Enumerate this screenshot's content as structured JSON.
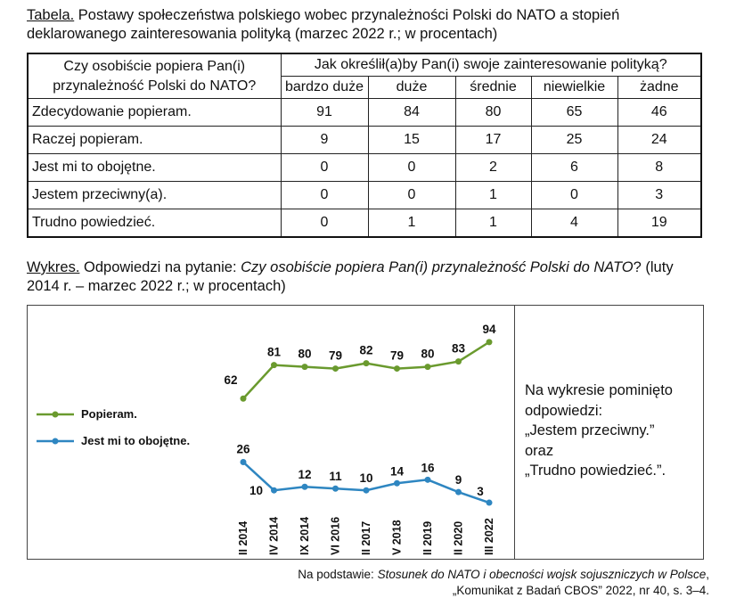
{
  "table_caption": {
    "label": "Tabela.",
    "text": " Postawy społeczeństwa polskiego wobec przynależności Polski do NATO a stopień deklarowanego zainteresowania polityką (marzec 2022 r.; w procentach)"
  },
  "table": {
    "corner": "Czy osobiście popiera Pan(i) przynależność Polski do NATO?",
    "group_header": "Jak określił(a)by Pan(i) swoje zainteresowanie polityką?",
    "columns": [
      "bardzo duże",
      "duże",
      "średnie",
      "niewielkie",
      "żadne"
    ],
    "rows": [
      {
        "label": "Zdecydowanie popieram.",
        "values": [
          "91",
          "84",
          "80",
          "65",
          "46"
        ]
      },
      {
        "label": "Raczej popieram.",
        "values": [
          "9",
          "15",
          "17",
          "25",
          "24"
        ]
      },
      {
        "label": "Jest mi to obojętne.",
        "values": [
          "0",
          "0",
          "2",
          "6",
          "8"
        ]
      },
      {
        "label": "Jestem przeciwny(a).",
        "values": [
          "0",
          "0",
          "1",
          "0",
          "3"
        ]
      },
      {
        "label": "Trudno powiedzieć.",
        "values": [
          "0",
          "1",
          "1",
          "4",
          "19"
        ]
      }
    ]
  },
  "chart_caption": {
    "label": "Wykres.",
    "text_before": " Odpowiedzi na pytanie: ",
    "question": "Czy osobiście popiera Pan(i) przynależność Polski do NATO",
    "text_after": "? (luty 2014 r. – marzec 2022 r.; w procentach)"
  },
  "chart_data": {
    "type": "line",
    "categories": [
      "II 2014",
      "IV 2014",
      "IX 2014",
      "VI 2016",
      "II 2017",
      "V 2018",
      "II 2019",
      "II 2020",
      "III 2022"
    ],
    "series": [
      {
        "name": "Popieram.",
        "color": "#6a9a2e",
        "values": [
          62,
          81,
          80,
          79,
          82,
          79,
          80,
          83,
          94
        ]
      },
      {
        "name": "Jest mi to obojętne.",
        "color": "#2e86c1",
        "values": [
          26,
          10,
          12,
          11,
          10,
          14,
          16,
          9,
          3
        ]
      }
    ],
    "legend": "left",
    "grid": false
  },
  "note": {
    "lines": [
      "Na wykresie pominięto",
      "odpowiedzi:",
      "„Jestem przeciwny.”",
      "oraz",
      "„Trudno powiedzieć.”."
    ]
  },
  "source": {
    "prefix": "Na podstawie: ",
    "title": "Stosunek do NATO i obecności wojsk sojuszniczych w Polsce",
    "suffix": ",",
    "line2": "„Komunikat z Badań CBOS” 2022, nr 40, s. 3–4."
  }
}
